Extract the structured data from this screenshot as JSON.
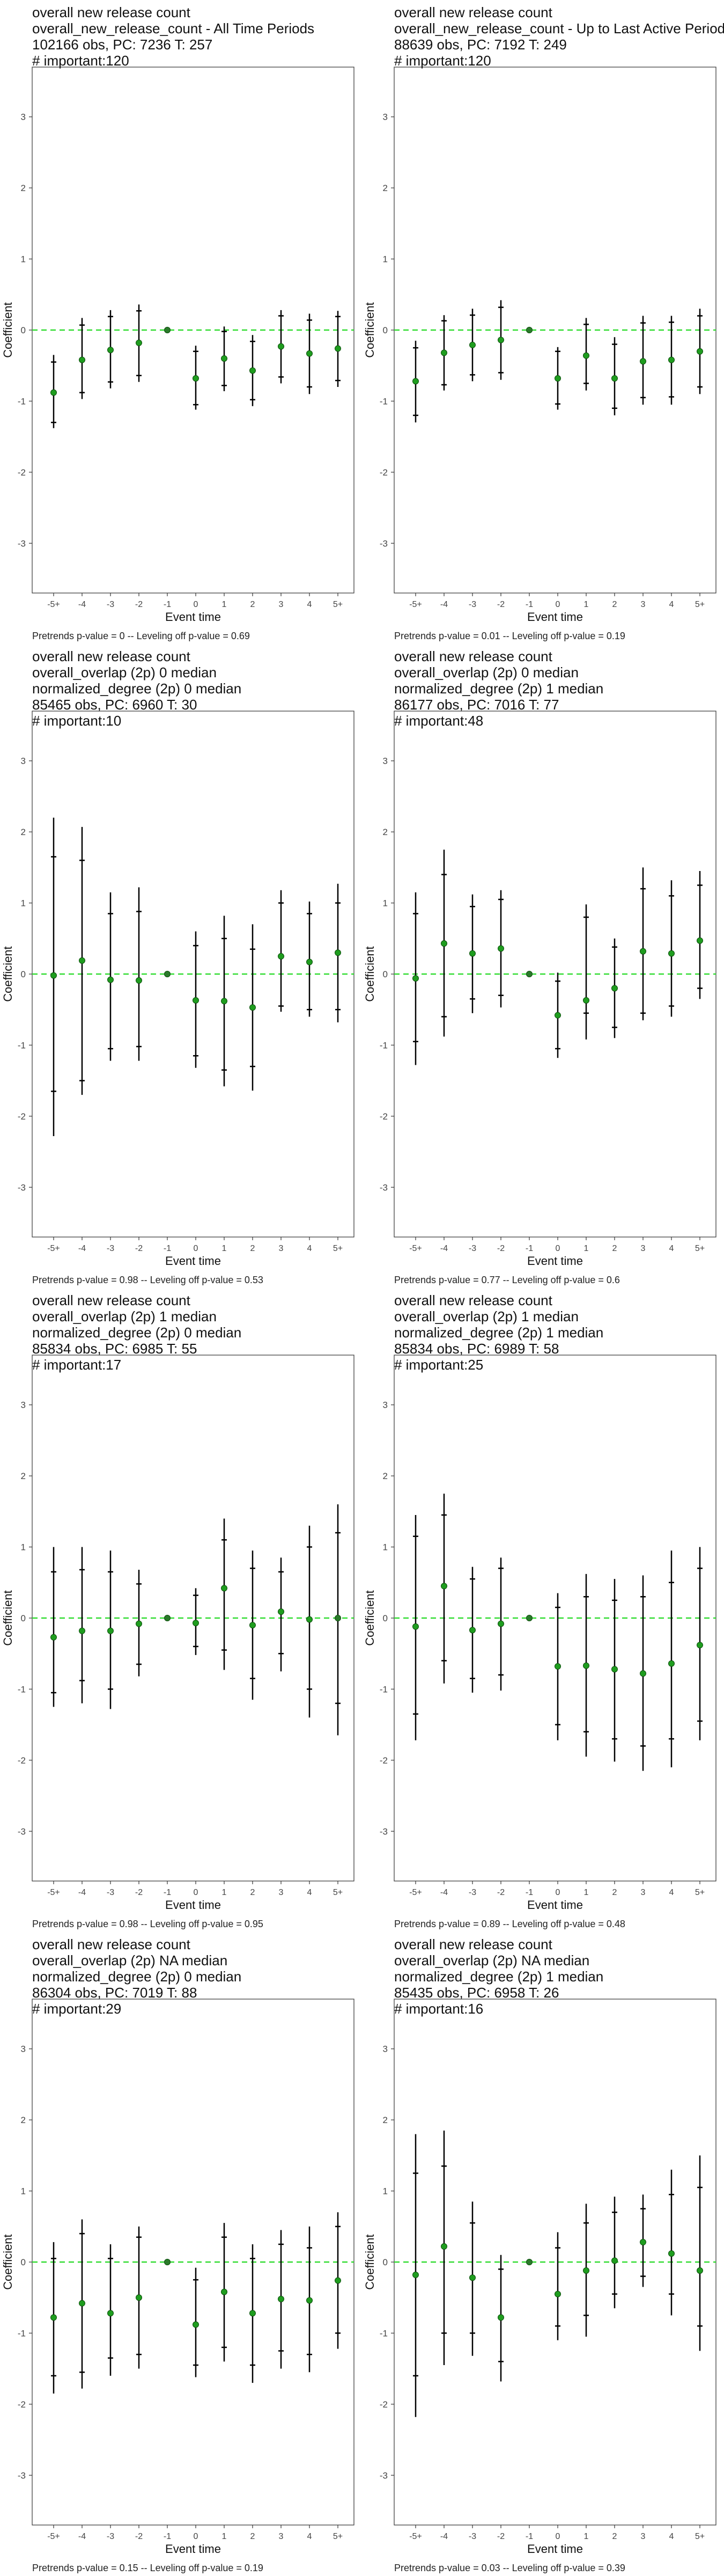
{
  "chart_data": [
    {
      "type": "errorbar",
      "title_lines": [
        "overall new release count",
        "overall_new_release_count - All Time Periods",
        "102166 obs, PC: 7236 T: 257",
        "# important:120"
      ],
      "xlabel": "Event time",
      "ylabel": "Coefficient",
      "categories": [
        "-5+",
        "-4",
        "-3",
        "-2",
        "-1",
        "0",
        "1",
        "2",
        "3",
        "4",
        "5+"
      ],
      "ylim": [
        -3.7,
        3.7
      ],
      "yticks": [
        -3,
        -2,
        -1,
        0,
        1,
        2,
        3
      ],
      "series": [
        {
          "coef": [
            -0.88,
            -0.42,
            -0.28,
            -0.18,
            0,
            -0.68,
            -0.4,
            -0.57,
            -0.23,
            -0.33,
            -0.26
          ],
          "ci95_low": [
            -1.38,
            -0.97,
            -0.82,
            -0.73,
            0,
            -1.12,
            -0.86,
            -1.07,
            -0.75,
            -0.9,
            -0.8
          ],
          "ci95_high": [
            -0.35,
            0.17,
            0.28,
            0.36,
            0,
            -0.22,
            0.05,
            -0.07,
            0.28,
            0.23,
            0.27
          ],
          "ci90_low": [
            -1.3,
            -0.88,
            -0.73,
            -0.64,
            0,
            -1.05,
            -0.78,
            -0.98,
            -0.66,
            -0.8,
            -0.71
          ],
          "ci90_high": [
            -0.45,
            0.07,
            0.19,
            0.27,
            0,
            -0.3,
            -0.02,
            -0.16,
            0.2,
            0.14,
            0.19
          ]
        }
      ],
      "footer": "Pretrends p-value = 0 -- Leveling off p-value = 0.69"
    },
    {
      "type": "errorbar",
      "title_lines": [
        "overall new release count",
        "overall_new_release_count - Up to Last Active Period",
        "88639 obs, PC: 7192 T: 249",
        "# important:120"
      ],
      "xlabel": "Event time",
      "ylabel": "Coefficient",
      "categories": [
        "-5+",
        "-4",
        "-3",
        "-2",
        "-1",
        "0",
        "1",
        "2",
        "3",
        "4",
        "5+"
      ],
      "ylim": [
        -3.7,
        3.7
      ],
      "yticks": [
        -3,
        -2,
        -1,
        0,
        1,
        2,
        3
      ],
      "series": [
        {
          "coef": [
            -0.72,
            -0.32,
            -0.21,
            -0.14,
            0,
            -0.68,
            -0.36,
            -0.68,
            -0.44,
            -0.42,
            -0.3
          ],
          "ci95_low": [
            -1.3,
            -0.85,
            -0.72,
            -0.7,
            0,
            -1.12,
            -0.85,
            -1.2,
            -1.05,
            -1.05,
            -0.9
          ],
          "ci95_high": [
            -0.15,
            0.21,
            0.3,
            0.42,
            0,
            -0.24,
            0.17,
            -0.1,
            0.2,
            0.2,
            0.3
          ],
          "ci90_low": [
            -1.2,
            -0.77,
            -0.63,
            -0.6,
            0,
            -1.04,
            -0.75,
            -1.1,
            -0.95,
            -0.94,
            -0.8
          ],
          "ci90_high": [
            -0.25,
            0.13,
            0.21,
            0.32,
            0,
            -0.3,
            0.08,
            -0.2,
            0.1,
            0.11,
            0.2
          ]
        }
      ],
      "footer": "Pretrends p-value = 0.01 -- Leveling off p-value = 0.19"
    },
    {
      "type": "errorbar",
      "title_lines": [
        "overall new release count",
        "overall_overlap (2p) 0 median",
        "normalized_degree (2p) 0 median",
        "85465 obs, PC: 6960 T: 30",
        "# important:10"
      ],
      "xlabel": "Event time",
      "ylabel": "Coefficient",
      "categories": [
        "-5+",
        "-4",
        "-3",
        "-2",
        "-1",
        "0",
        "1",
        "2",
        "3",
        "4",
        "5+"
      ],
      "ylim": [
        -3.7,
        3.7
      ],
      "yticks": [
        -3,
        -2,
        -1,
        0,
        1,
        2,
        3
      ],
      "series": [
        {
          "coef": [
            -0.02,
            0.19,
            -0.08,
            -0.09,
            0,
            -0.37,
            -0.38,
            -0.47,
            0.25,
            0.17,
            0.3
          ],
          "ci95_low": [
            -2.28,
            -1.7,
            -1.22,
            -1.22,
            0,
            -1.32,
            -1.58,
            -1.64,
            -0.53,
            -0.6,
            -0.68
          ],
          "ci95_high": [
            2.2,
            2.07,
            1.15,
            1.22,
            0,
            0.6,
            0.82,
            0.7,
            1.18,
            1.02,
            1.27
          ],
          "ci90_low": [
            -1.65,
            -1.5,
            -1.05,
            -1.02,
            0,
            -1.15,
            -1.35,
            -1.3,
            -0.45,
            -0.5,
            -0.5
          ],
          "ci90_high": [
            1.65,
            1.6,
            0.85,
            0.88,
            0,
            0.4,
            0.5,
            0.35,
            1.0,
            0.85,
            1.0
          ]
        }
      ],
      "footer": "Pretrends p-value = 0.98 -- Leveling off p-value = 0.53"
    },
    {
      "type": "errorbar",
      "title_lines": [
        "overall new release count",
        "overall_overlap (2p) 0 median",
        "normalized_degree (2p) 1 median",
        "86177 obs, PC: 7016 T: 77",
        "# important:48"
      ],
      "xlabel": "Event time",
      "ylabel": "Coefficient",
      "categories": [
        "-5+",
        "-4",
        "-3",
        "-2",
        "-1",
        "0",
        "1",
        "2",
        "3",
        "4",
        "5+"
      ],
      "ylim": [
        -3.7,
        3.7
      ],
      "yticks": [
        -3,
        -2,
        -1,
        0,
        1,
        2,
        3
      ],
      "series": [
        {
          "coef": [
            -0.06,
            0.43,
            0.29,
            0.36,
            0,
            -0.58,
            -0.37,
            -0.2,
            0.32,
            0.29,
            0.47
          ],
          "ci95_low": [
            -1.28,
            -0.88,
            -0.55,
            -0.47,
            0,
            -1.18,
            -0.92,
            -0.9,
            -0.65,
            -0.6,
            -0.35
          ],
          "ci95_high": [
            1.15,
            1.75,
            1.12,
            1.18,
            0,
            0.02,
            0.98,
            0.5,
            1.5,
            1.32,
            1.45
          ],
          "ci90_low": [
            -0.95,
            -0.6,
            -0.35,
            -0.3,
            0,
            -1.05,
            -0.55,
            -0.75,
            -0.55,
            -0.45,
            -0.2
          ],
          "ci90_high": [
            0.85,
            1.4,
            0.95,
            1.05,
            0,
            -0.1,
            0.8,
            0.38,
            1.2,
            1.1,
            1.25
          ]
        }
      ],
      "footer": "Pretrends p-value = 0.77 -- Leveling off p-value = 0.6"
    },
    {
      "type": "errorbar",
      "title_lines": [
        "overall new release count",
        "overall_overlap (2p) 1 median",
        "normalized_degree (2p) 0 median",
        "85834 obs, PC: 6985 T: 55",
        "# important:17"
      ],
      "xlabel": "Event time",
      "ylabel": "Coefficient",
      "categories": [
        "-5+",
        "-4",
        "-3",
        "-2",
        "-1",
        "0",
        "1",
        "2",
        "3",
        "4",
        "5+"
      ],
      "ylim": [
        -3.7,
        3.7
      ],
      "yticks": [
        -3,
        -2,
        -1,
        0,
        1,
        2,
        3
      ],
      "series": [
        {
          "coef": [
            -0.27,
            -0.18,
            -0.18,
            -0.08,
            0,
            -0.07,
            0.42,
            -0.1,
            0.09,
            -0.02,
            0.0
          ],
          "ci95_low": [
            -1.25,
            -1.2,
            -1.28,
            -0.82,
            0,
            -0.52,
            -0.73,
            -1.15,
            -0.75,
            -1.4,
            -1.65
          ],
          "ci95_high": [
            1.0,
            1.0,
            0.95,
            0.68,
            0,
            0.42,
            1.4,
            0.95,
            0.85,
            1.3,
            1.6
          ],
          "ci90_low": [
            -1.05,
            -0.88,
            -1.0,
            -0.65,
            0,
            -0.4,
            -0.45,
            -0.85,
            -0.5,
            -1.0,
            -1.2
          ],
          "ci90_high": [
            0.65,
            0.68,
            0.65,
            0.48,
            0,
            0.32,
            1.1,
            0.7,
            0.65,
            1.0,
            1.2
          ]
        }
      ],
      "footer": "Pretrends p-value = 0.98 -- Leveling off p-value = 0.95"
    },
    {
      "type": "errorbar",
      "title_lines": [
        "overall new release count",
        "overall_overlap (2p) 1 median",
        "normalized_degree (2p) 1 median",
        "85834 obs, PC: 6989 T: 58",
        "# important:25"
      ],
      "xlabel": "Event time",
      "ylabel": "Coefficient",
      "categories": [
        "-5+",
        "-4",
        "-3",
        "-2",
        "-1",
        "0",
        "1",
        "2",
        "3",
        "4",
        "5+"
      ],
      "ylim": [
        -3.7,
        3.7
      ],
      "yticks": [
        -3,
        -2,
        -1,
        0,
        1,
        2,
        3
      ],
      "series": [
        {
          "coef": [
            -0.12,
            0.45,
            -0.17,
            -0.08,
            0,
            -0.68,
            -0.67,
            -0.72,
            -0.78,
            -0.64,
            -0.38
          ],
          "ci95_low": [
            -1.72,
            -0.92,
            -1.05,
            -1.02,
            0,
            -1.72,
            -1.95,
            -2.02,
            -2.15,
            -2.1,
            -1.72
          ],
          "ci95_high": [
            1.45,
            1.75,
            0.72,
            0.85,
            0,
            0.35,
            0.62,
            0.55,
            0.6,
            0.95,
            1.0
          ],
          "ci90_low": [
            -1.35,
            -0.6,
            -0.85,
            -0.8,
            0,
            -1.5,
            -1.6,
            -1.7,
            -1.8,
            -1.7,
            -1.45
          ],
          "ci90_high": [
            1.15,
            1.45,
            0.55,
            0.7,
            0,
            0.15,
            0.3,
            0.25,
            0.3,
            0.5,
            0.7
          ]
        }
      ],
      "footer": "Pretrends p-value = 0.89 -- Leveling off p-value = 0.48"
    },
    {
      "type": "errorbar",
      "title_lines": [
        "overall new release count",
        "overall_overlap (2p) NA median",
        "normalized_degree (2p) 0 median",
        "86304 obs, PC: 7019 T: 88",
        "# important:29"
      ],
      "xlabel": "Event time",
      "ylabel": "Coefficient",
      "categories": [
        "-5+",
        "-4",
        "-3",
        "-2",
        "-1",
        "0",
        "1",
        "2",
        "3",
        "4",
        "5+"
      ],
      "ylim": [
        -3.7,
        3.7
      ],
      "yticks": [
        -3,
        -2,
        -1,
        0,
        1,
        2,
        3
      ],
      "series": [
        {
          "coef": [
            -0.78,
            -0.58,
            -0.72,
            -0.5,
            0,
            -0.88,
            -0.42,
            -0.72,
            -0.52,
            -0.54,
            -0.26
          ],
          "ci95_low": [
            -1.85,
            -1.78,
            -1.6,
            -1.5,
            0,
            -1.62,
            -1.4,
            -1.7,
            -1.5,
            -1.55,
            -1.22
          ],
          "ci95_high": [
            0.28,
            0.6,
            0.25,
            0.5,
            0,
            -0.08,
            0.55,
            0.25,
            0.45,
            0.5,
            0.7
          ],
          "ci90_low": [
            -1.6,
            -1.55,
            -1.35,
            -1.3,
            0,
            -1.45,
            -1.2,
            -1.45,
            -1.25,
            -1.3,
            -1.0
          ],
          "ci90_high": [
            0.05,
            0.4,
            0.05,
            0.35,
            0,
            -0.25,
            0.35,
            0.05,
            0.25,
            0.2,
            0.5
          ]
        }
      ],
      "footer": "Pretrends p-value = 0.15 -- Leveling off p-value = 0.19"
    },
    {
      "type": "errorbar",
      "title_lines": [
        "overall new release count",
        "overall_overlap (2p) NA median",
        "normalized_degree (2p) 1 median",
        "85435 obs, PC: 6958 T: 26",
        "# important:16"
      ],
      "xlabel": "Event time",
      "ylabel": "Coefficient",
      "categories": [
        "-5+",
        "-4",
        "-3",
        "-2",
        "-1",
        "0",
        "1",
        "2",
        "3",
        "4",
        "5+"
      ],
      "ylim": [
        -3.7,
        3.7
      ],
      "yticks": [
        -3,
        -2,
        -1,
        0,
        1,
        2,
        3
      ],
      "series": [
        {
          "coef": [
            -0.18,
            0.22,
            -0.22,
            -0.78,
            0,
            -0.45,
            -0.12,
            0.02,
            0.28,
            0.12,
            -0.12
          ],
          "ci95_low": [
            -2.18,
            -1.45,
            -1.32,
            -1.68,
            0,
            -1.1,
            -1.05,
            -0.65,
            -0.35,
            -0.75,
            -1.25
          ],
          "ci95_high": [
            1.8,
            1.85,
            0.85,
            0.1,
            0,
            0.42,
            0.82,
            0.92,
            0.95,
            1.3,
            1.5
          ],
          "ci90_low": [
            -1.6,
            -1.0,
            -1.0,
            -1.4,
            0,
            -0.9,
            -0.75,
            -0.45,
            -0.2,
            -0.45,
            -0.9
          ],
          "ci90_high": [
            1.25,
            1.35,
            0.55,
            -0.1,
            0,
            0.2,
            0.55,
            0.7,
            0.75,
            0.95,
            1.05
          ]
        }
      ],
      "footer": "Pretrends p-value = 0.03 -- Leveling off p-value = 0.39"
    }
  ],
  "colors": {
    "point": "#1f9d1f",
    "point_ref": "#2a7a2a",
    "zero_line": "#33dd33",
    "bar": "#000000",
    "axis": "#333333"
  }
}
